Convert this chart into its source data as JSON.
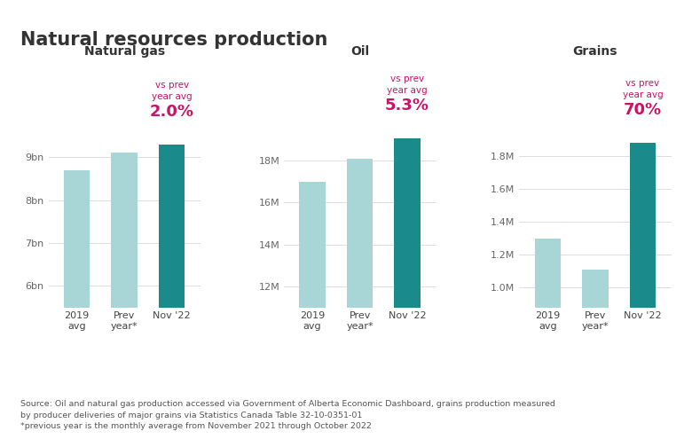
{
  "title": "Natural resources production",
  "background_color": "#ffffff",
  "light_bar_color": "#a8d5d5",
  "dark_bar_color": "#1a8a8a",
  "annotation_color": "#cc1166",
  "text_color": "#333333",
  "source_text": "Source: Oil and natural gas production accessed via Government of Alberta Economic Dashboard, grains production measured\nby producer deliveries of major grains via Statistics Canada Table 32-10-0351-01\n*previous year is the monthly average from November 2021 through October 2022",
  "panels": [
    {
      "subtitle": "Natural gas",
      "categories": [
        "2019\navg",
        "Prev\nyear*",
        "Nov '22"
      ],
      "values": [
        8.7,
        9.1,
        9.3
      ],
      "colors": [
        "#a8d5d5",
        "#a8d5d5",
        "#1a8a8a"
      ],
      "ylim": [
        5.5,
        9.8
      ],
      "yticks": [
        6,
        7,
        8,
        9
      ],
      "ytick_labels": [
        "6bn",
        "7bn",
        "8bn",
        "9bn"
      ],
      "pct_label": "2.0%",
      "annotation_text": "vs prev\nyear avg"
    },
    {
      "subtitle": "Oil",
      "categories": [
        "2019\navg",
        "Prev\nyear*",
        "Nov '22"
      ],
      "values": [
        17.0,
        18.1,
        19.05
      ],
      "colors": [
        "#a8d5d5",
        "#a8d5d5",
        "#1a8a8a"
      ],
      "ylim": [
        11.0,
        19.8
      ],
      "yticks": [
        12,
        14,
        16,
        18
      ],
      "ytick_labels": [
        "12M",
        "14M",
        "16M",
        "18M"
      ],
      "pct_label": "5.3%",
      "annotation_text": "vs prev\nyear avg"
    },
    {
      "subtitle": "Grains",
      "categories": [
        "2019\navg",
        "Prev\nyear*",
        "Nov '22"
      ],
      "values": [
        1.3,
        1.11,
        1.88
      ],
      "colors": [
        "#a8d5d5",
        "#a8d5d5",
        "#1a8a8a"
      ],
      "ylim": [
        0.88,
        2.0
      ],
      "yticks": [
        1.0,
        1.2,
        1.4,
        1.6,
        1.8
      ],
      "ytick_labels": [
        "1.0M",
        "1.2M",
        "1.4M",
        "1.6M",
        "1.8M"
      ],
      "pct_label": "70%",
      "annotation_text": "vs prev\nyear avg"
    }
  ]
}
